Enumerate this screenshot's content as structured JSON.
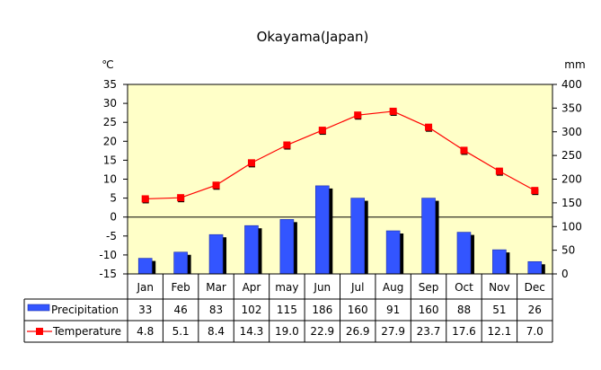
{
  "chart_data": {
    "type": "bar+line",
    "title": "Okayama(Japan)",
    "left_axis_unit": "℃",
    "right_axis_unit": "mm",
    "left_ylim": [
      -15,
      35
    ],
    "left_ticks": [
      "35",
      "30",
      "25",
      "20",
      "15",
      "10",
      "5",
      "0",
      "-5",
      "-10",
      "-15"
    ],
    "right_ylim": [
      0,
      400
    ],
    "right_ticks": [
      "400",
      "350",
      "300",
      "250",
      "200",
      "150",
      "100",
      "50",
      "0"
    ],
    "categories": [
      "Jan",
      "Feb",
      "Mar",
      "Apr",
      "may",
      "Jun",
      "Jul",
      "Aug",
      "Sep",
      "Oct",
      "Nov",
      "Dec"
    ],
    "series": [
      {
        "name": "Precipitation",
        "kind": "bar",
        "axis": "right",
        "color": "#3355ff",
        "values": [
          33,
          46,
          83,
          102,
          115,
          186,
          160,
          91,
          160,
          88,
          51,
          26
        ],
        "labels": [
          "33",
          "46",
          "83",
          "102",
          "115",
          "186",
          "160",
          "91",
          "160",
          "88",
          "51",
          "26"
        ]
      },
      {
        "name": "Temperature",
        "kind": "line",
        "axis": "left",
        "color": "#ff0000",
        "values": [
          4.8,
          5.1,
          8.4,
          14.3,
          19.0,
          22.9,
          26.9,
          27.9,
          23.7,
          17.6,
          12.1,
          7.0
        ],
        "labels": [
          "4.8",
          "5.1",
          "8.4",
          "14.3",
          "19.0",
          "22.9",
          "26.9",
          "27.9",
          "23.7",
          "17.6",
          "12.1",
          "7.0"
        ]
      }
    ],
    "plot_background": "#ffffc8",
    "grid": false,
    "legend": "table-below"
  }
}
